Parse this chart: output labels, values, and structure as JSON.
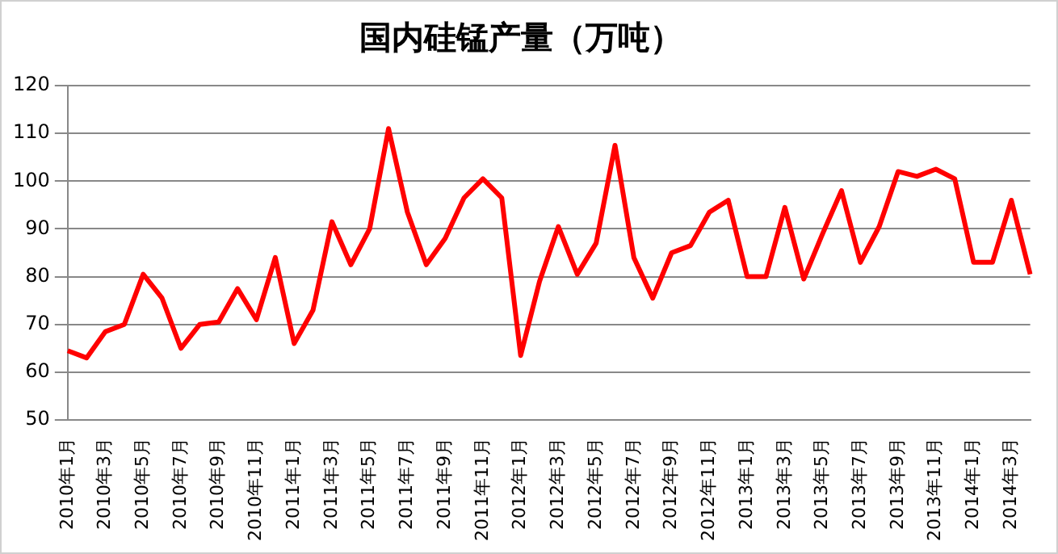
{
  "chart_data": {
    "type": "line",
    "title": "国内硅锰产量（万吨）",
    "categories": [
      "2010年1月",
      null,
      "2010年3月",
      null,
      "2010年5月",
      null,
      "2010年7月",
      null,
      "2010年9月",
      null,
      "2010年11月",
      null,
      "2011年1月",
      null,
      "2011年3月",
      null,
      "2011年5月",
      null,
      "2011年7月",
      null,
      "2011年9月",
      null,
      "2011年11月",
      null,
      "2012年1月",
      null,
      "2012年3月",
      null,
      "2012年5月",
      null,
      "2012年7月",
      null,
      "2012年9月",
      null,
      "2012年11月",
      null,
      "2013年1月",
      null,
      "2013年3月",
      null,
      "2013年5月",
      null,
      "2013年7月",
      null,
      "2013年9月",
      null,
      "2013年11月",
      null,
      "2014年1月",
      null,
      "2014年3月",
      null
    ],
    "series": [
      {
        "color": "#ff0000",
        "values": [
          64.5,
          63,
          68.5,
          70,
          80.5,
          75.5,
          65,
          70,
          70.5,
          77.5,
          71,
          84,
          66,
          73,
          91.5,
          82.5,
          90,
          111,
          93.5,
          82.5,
          88,
          96.5,
          100.5,
          96.5,
          63.5,
          79,
          90.5,
          80.5,
          87,
          107.5,
          84,
          75.5,
          85,
          86.5,
          93.5,
          96,
          80,
          80,
          94.5,
          79.5,
          89,
          98,
          83,
          90.5,
          102,
          101,
          102.5,
          100.5,
          83,
          83,
          96,
          80.5
        ]
      }
    ],
    "ylim": [
      50,
      120
    ],
    "yticks": [
      50,
      60,
      70,
      80,
      90,
      100,
      110,
      120
    ],
    "grid": "y",
    "legend": false,
    "marker": "none",
    "line_style": "solid"
  }
}
